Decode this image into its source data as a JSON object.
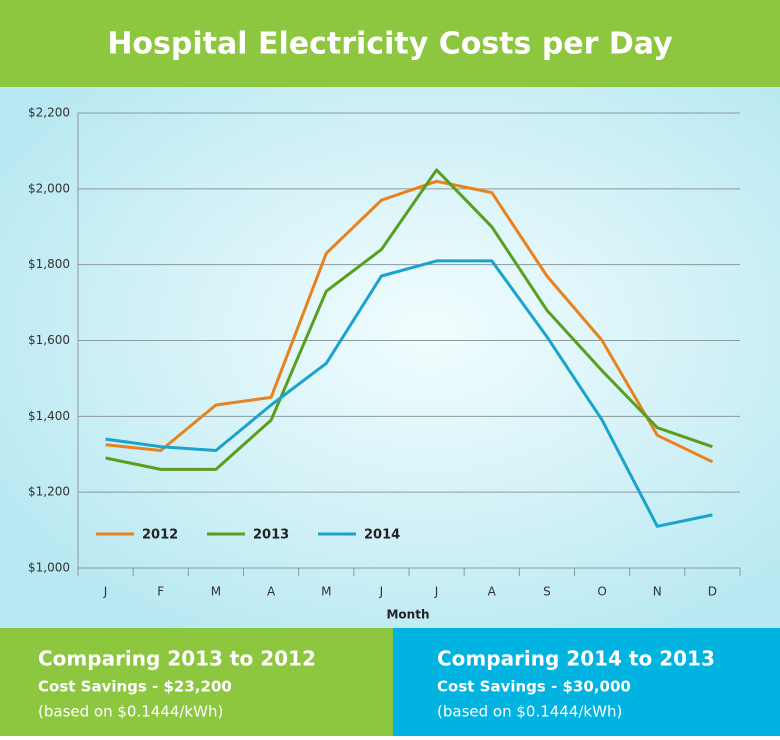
{
  "chart_data": {
    "type": "line",
    "title": "Hospital Electricity Costs per Day",
    "x_label": "Month",
    "categories": [
      "J",
      "F",
      "M",
      "A",
      "M",
      "J",
      "J",
      "A",
      "S",
      "O",
      "N",
      "D"
    ],
    "series": [
      {
        "name": "2012",
        "color": "#e8821e",
        "values": [
          1325,
          1310,
          1430,
          1450,
          1830,
          1970,
          2020,
          1990,
          1770,
          1600,
          1350,
          1280
        ]
      },
      {
        "name": "2013",
        "color": "#5a9e1e",
        "values": [
          1290,
          1260,
          1260,
          1390,
          1730,
          1840,
          2050,
          1900,
          1680,
          1520,
          1370,
          1320
        ]
      },
      {
        "name": "2014",
        "color": "#1aa3cc",
        "values": [
          1340,
          1320,
          1310,
          1430,
          1540,
          1770,
          1810,
          1810,
          1610,
          1390,
          1110,
          1140
        ]
      }
    ],
    "ylim": [
      1000,
      2200
    ],
    "yticks": [
      {
        "value": 1000,
        "label": "$1,000"
      },
      {
        "value": 1200,
        "label": "$1,200"
      },
      {
        "value": 1400,
        "label": "$1,400"
      },
      {
        "value": 1600,
        "label": "$1,600"
      },
      {
        "value": 1800,
        "label": "$1,800"
      },
      {
        "value": 2000,
        "label": "$2,000"
      },
      {
        "value": 2200,
        "label": "$2,200"
      }
    ],
    "grid": true
  },
  "panels": [
    {
      "heading": "Comparing 2013 to 2012",
      "savings": "Cost Savings - $23,200",
      "note": "(based on $0.1444/kWh)"
    },
    {
      "heading": "Comparing 2014 to 2013",
      "savings": "Cost Savings - $30,000",
      "note": "(based on $0.1444/kWh)"
    }
  ]
}
